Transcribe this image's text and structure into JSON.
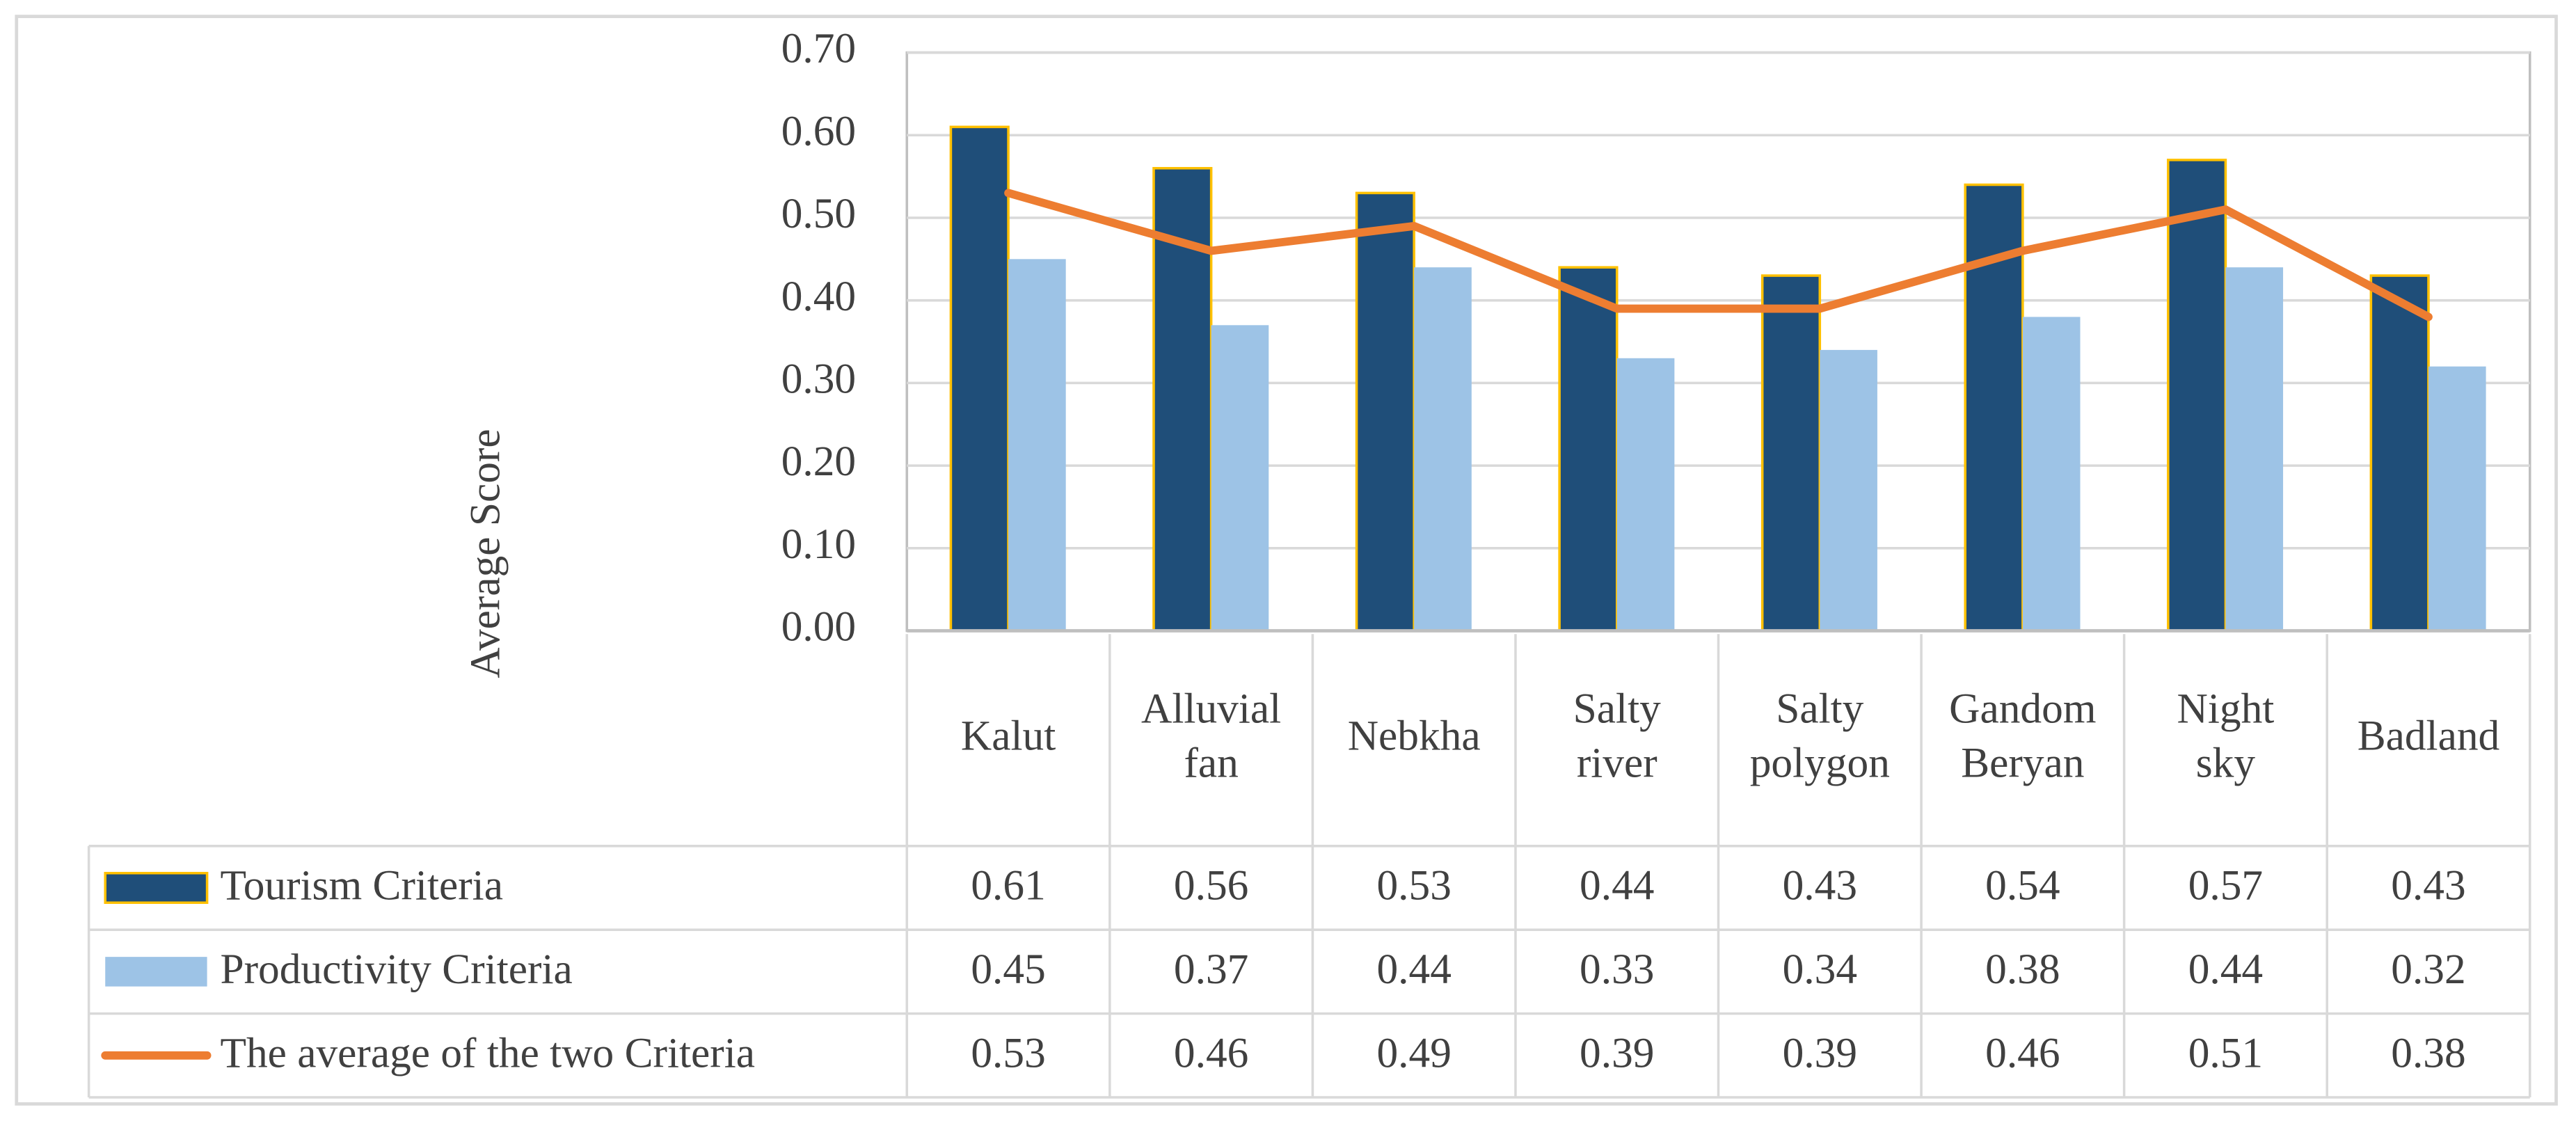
{
  "chart_data": {
    "type": "bar-line",
    "y_label": "Average Score",
    "categories": [
      "Kalut",
      "Alluvial fan",
      "Nebkha",
      "Salty river",
      "Salty polygon",
      "Gandom Beryan",
      "Night sky",
      "Badland"
    ],
    "series": [
      {
        "name": "Tourism Criteria",
        "type": "bar",
        "color": "#1f4e79",
        "values": [
          0.61,
          0.56,
          0.53,
          0.44,
          0.43,
          0.54,
          0.57,
          0.43
        ]
      },
      {
        "name": "Productivity Criteria",
        "type": "bar",
        "color": "#9dc3e6",
        "values": [
          0.45,
          0.37,
          0.44,
          0.33,
          0.34,
          0.38,
          0.44,
          0.32
        ]
      },
      {
        "name": "The average of the two Criteria",
        "type": "line",
        "color": "#ed7d31",
        "values": [
          0.53,
          0.46,
          0.49,
          0.39,
          0.39,
          0.46,
          0.51,
          0.38
        ]
      }
    ],
    "ylim": [
      0,
      0.7
    ],
    "yticks": [
      {
        "value": 0,
        "label": "0.00"
      },
      {
        "value": 0.1,
        "label": "0.10"
      },
      {
        "value": 0.2,
        "label": "0.20"
      },
      {
        "value": 0.3,
        "label": "0.30"
      },
      {
        "value": 0.4,
        "label": "0.40"
      },
      {
        "value": 0.5,
        "label": "0.50"
      },
      {
        "value": 0.6,
        "label": "0.60"
      },
      {
        "value": 0.7,
        "label": "0.70"
      }
    ],
    "grid": true,
    "data_table": true
  }
}
